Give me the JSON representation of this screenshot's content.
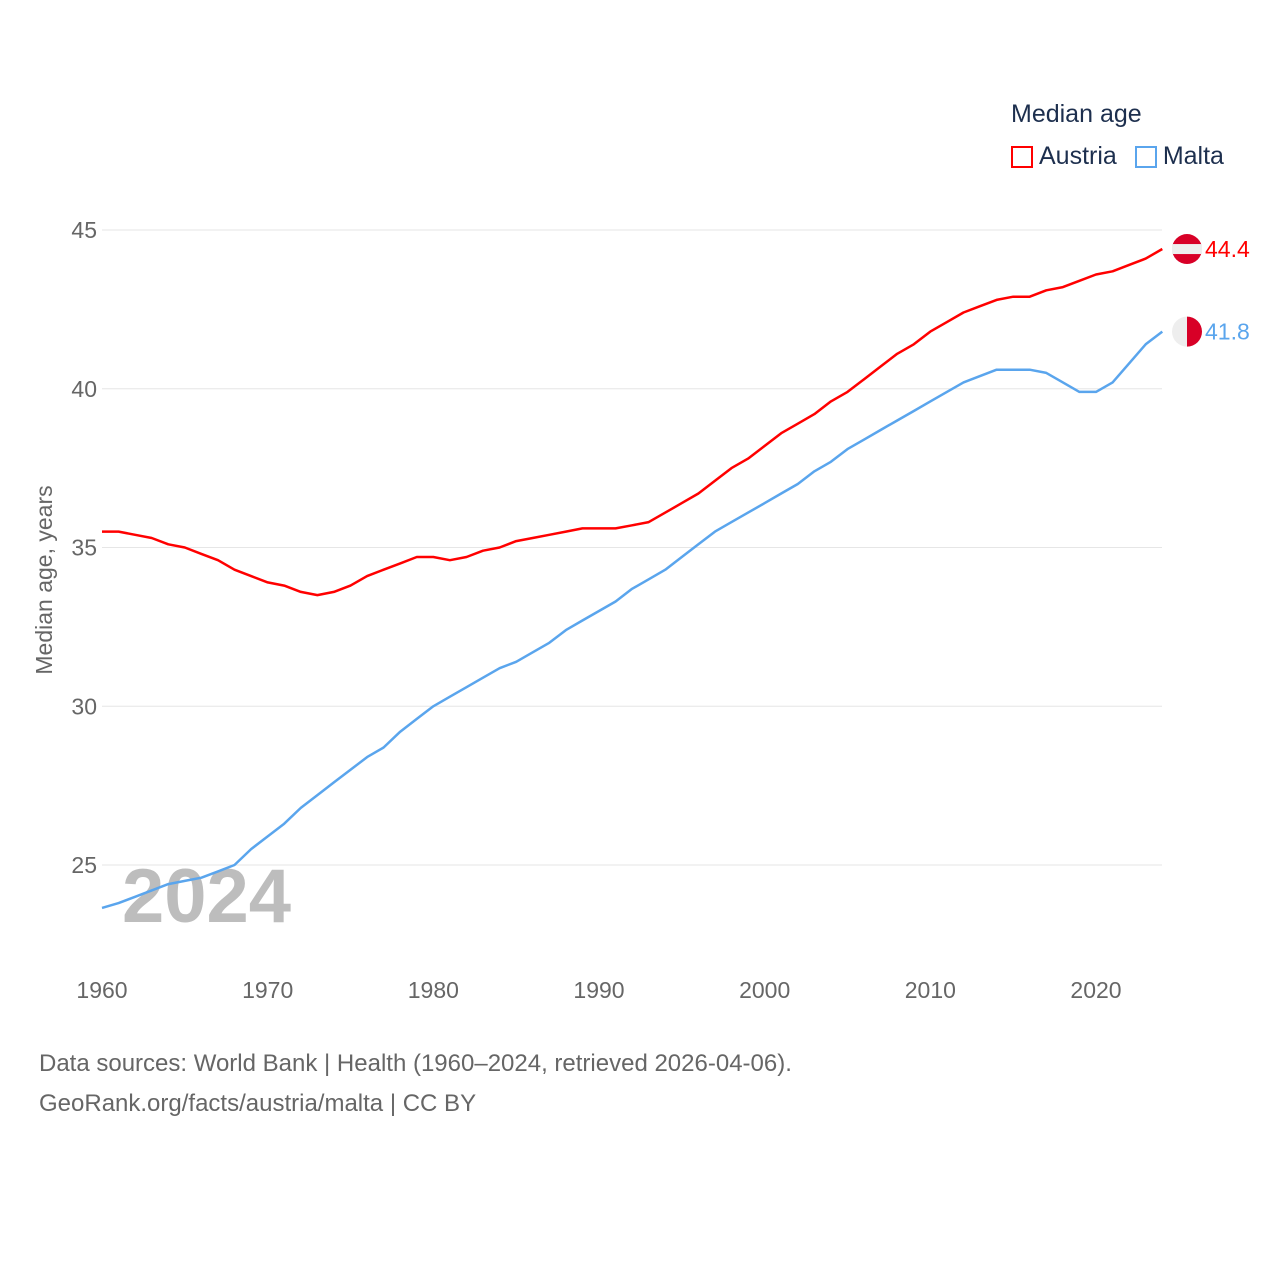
{
  "chart_data": {
    "type": "line",
    "legend_title": "Median age",
    "ylabel": "Median age, years",
    "ylim": [
      22.5,
      46
    ],
    "xlim": [
      1960,
      2024
    ],
    "yticks": [
      25,
      30,
      35,
      40,
      45
    ],
    "xticks": [
      1960,
      1970,
      1980,
      1990,
      2000,
      2010,
      2020
    ],
    "grid": true,
    "legend_position": "top-right",
    "watermark_year": "2024",
    "x": [
      1960,
      1961,
      1962,
      1963,
      1964,
      1965,
      1966,
      1967,
      1968,
      1969,
      1970,
      1971,
      1972,
      1973,
      1974,
      1975,
      1976,
      1977,
      1978,
      1979,
      1980,
      1981,
      1982,
      1983,
      1984,
      1985,
      1986,
      1987,
      1988,
      1989,
      1990,
      1991,
      1992,
      1993,
      1994,
      1995,
      1996,
      1997,
      1998,
      1999,
      2000,
      2001,
      2002,
      2003,
      2004,
      2005,
      2006,
      2007,
      2008,
      2009,
      2010,
      2011,
      2012,
      2013,
      2014,
      2015,
      2016,
      2017,
      2018,
      2019,
      2020,
      2021,
      2022,
      2023,
      2024
    ],
    "series": [
      {
        "name": "Austria",
        "color": "#ff0000",
        "end_label": "44.4",
        "values": [
          35.5,
          35.5,
          35.4,
          35.3,
          35.1,
          35.0,
          34.8,
          34.6,
          34.3,
          34.1,
          33.9,
          33.8,
          33.6,
          33.5,
          33.6,
          33.8,
          34.1,
          34.3,
          34.5,
          34.7,
          34.7,
          34.6,
          34.7,
          34.9,
          35.0,
          35.2,
          35.3,
          35.4,
          35.5,
          35.6,
          35.6,
          35.6,
          35.7,
          35.8,
          36.1,
          36.4,
          36.7,
          37.1,
          37.5,
          37.8,
          38.2,
          38.6,
          38.9,
          39.2,
          39.6,
          39.9,
          40.3,
          40.7,
          41.1,
          41.4,
          41.8,
          42.1,
          42.4,
          42.6,
          42.8,
          42.9,
          42.9,
          43.1,
          43.2,
          43.4,
          43.6,
          43.7,
          43.9,
          44.1,
          44.4
        ]
      },
      {
        "name": "Malta",
        "color": "#5aa5ed",
        "end_label": "41.8",
        "values": [
          23.65,
          23.8,
          24.0,
          24.2,
          24.4,
          24.5,
          24.6,
          24.8,
          25.0,
          25.5,
          25.9,
          26.3,
          26.8,
          27.2,
          27.6,
          28.0,
          28.4,
          28.7,
          29.2,
          29.6,
          30.0,
          30.3,
          30.6,
          30.9,
          31.2,
          31.4,
          31.7,
          32.0,
          32.4,
          32.7,
          33.0,
          33.3,
          33.7,
          34.0,
          34.3,
          34.7,
          35.1,
          35.5,
          35.8,
          36.1,
          36.4,
          36.7,
          37.0,
          37.4,
          37.7,
          38.1,
          38.4,
          38.7,
          39.0,
          39.3,
          39.6,
          39.9,
          40.2,
          40.4,
          40.6,
          40.6,
          40.6,
          40.5,
          40.2,
          39.9,
          39.9,
          40.2,
          40.8,
          41.4,
          41.8
        ]
      }
    ]
  },
  "source": {
    "line1": "Data sources: World Bank | Health (1960–2024, retrieved 2026-04-06).",
    "line2": "GeoRank.org/facts/austria/malta | CC BY"
  }
}
